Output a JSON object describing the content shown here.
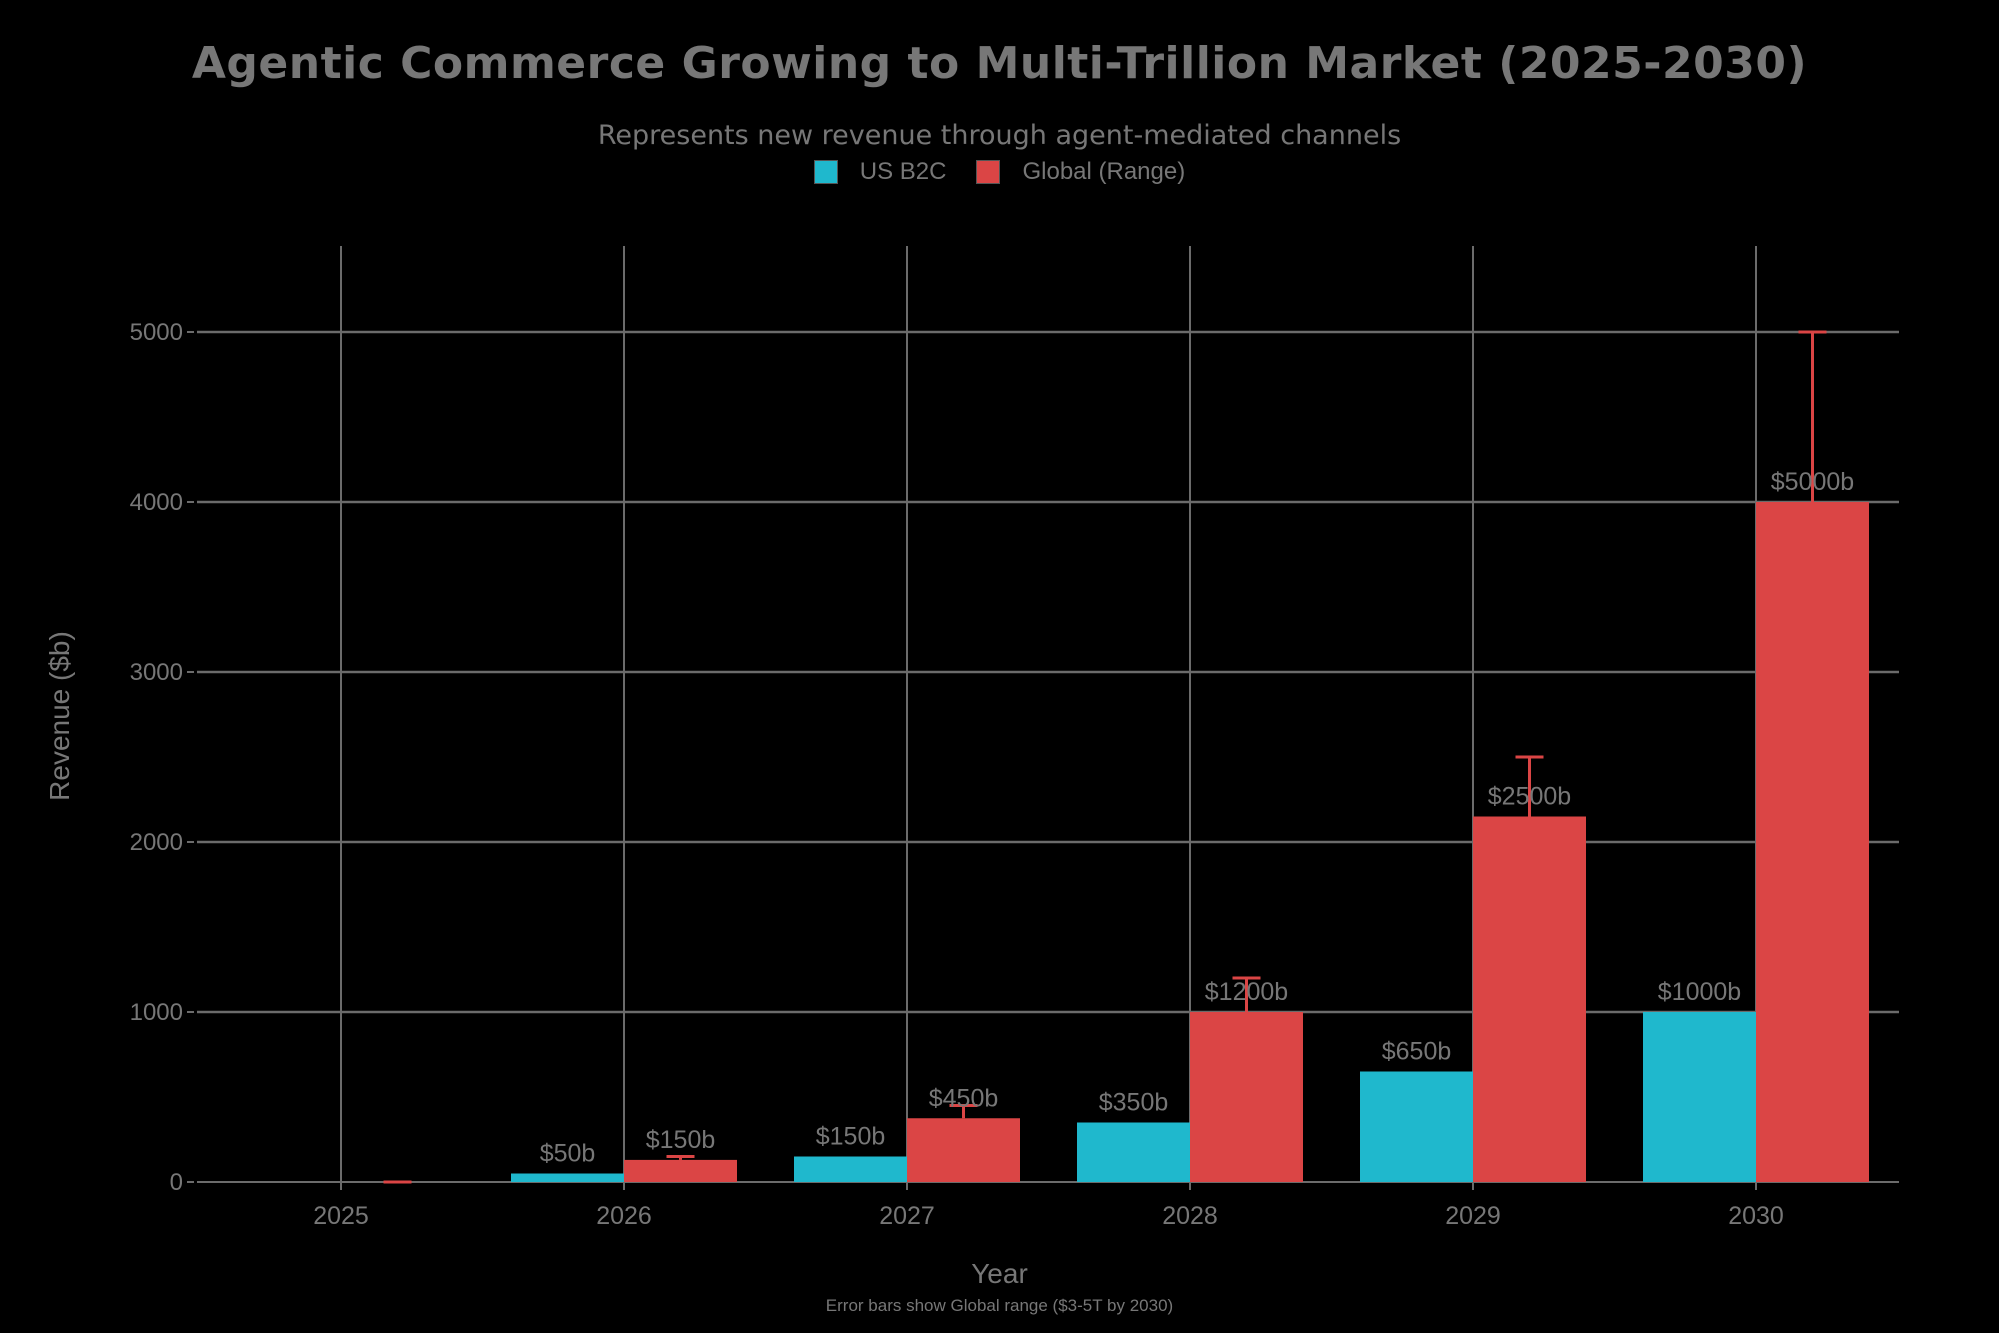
{
  "chart_data": {
    "type": "bar",
    "title": "Agentic Commerce Growing to Multi-Trillion Market (2025-2030)",
    "subtitle": "Represents new revenue through agent-mediated channels",
    "xlabel": "Year",
    "ylabel": "Revenue ($b)",
    "footnote": "Error bars show Global range ($3-5T by 2030)",
    "categories": [
      "2025",
      "2026",
      "2027",
      "2028",
      "2029",
      "2030"
    ],
    "series": [
      {
        "name": "US B2C",
        "color": "#1FB8CD",
        "values": [
          0,
          50,
          150,
          350,
          650,
          1000
        ],
        "labels": [
          "",
          "$50b",
          "$150b",
          "$350b",
          "$650b",
          "$1000b"
        ]
      },
      {
        "name": "Global (Range)",
        "color": "#DB4545",
        "values": [
          0,
          130,
          375,
          1000,
          2150,
          4000
        ],
        "error_upper": [
          0,
          150,
          450,
          1200,
          2500,
          5000
        ],
        "labels": [
          "",
          "$150b",
          "$450b",
          "$1200b",
          "$2500b",
          "$5000b"
        ]
      }
    ],
    "yticks": [
      0,
      1000,
      2000,
      3000,
      4000,
      5000
    ],
    "ylim": [
      0,
      5500
    ],
    "grid": true,
    "legend_position": "top-center"
  },
  "legend": {
    "items": [
      {
        "label": "US B2C",
        "color": "#1FB8CD"
      },
      {
        "label": "Global (Range)",
        "color": "#DB4545"
      }
    ]
  }
}
